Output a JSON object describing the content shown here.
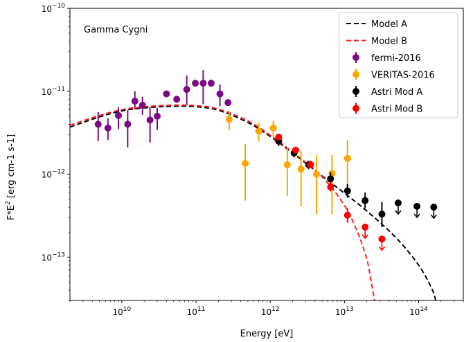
{
  "chart_data": {
    "type": "scatter",
    "annotation": "Gamma Cygni",
    "xlabel": "Energy [eV]",
    "ylabel_base": "F*E",
    "ylabel_sup": "2",
    "ylabel_rest": "  [erg cm-1 s-1]",
    "xscale": "log",
    "yscale": "log",
    "xlim": [
      2000000000.0,
      400000000000000.0
    ],
    "ylim": [
      3e-14,
      1e-10
    ],
    "x_ticks": [
      {
        "value": 10000000000.0,
        "mant": "10",
        "exp": "10"
      },
      {
        "value": 100000000000.0,
        "mant": "10",
        "exp": "11"
      },
      {
        "value": 1000000000000.0,
        "mant": "10",
        "exp": "12"
      },
      {
        "value": 10000000000000.0,
        "mant": "10",
        "exp": "13"
      },
      {
        "value": 100000000000000.0,
        "mant": "10",
        "exp": "14"
      }
    ],
    "y_ticks": [
      {
        "value": 1e-13,
        "mant": "10",
        "exp": "−13"
      },
      {
        "value": 1e-12,
        "mant": "10",
        "exp": "−12"
      },
      {
        "value": 1e-11,
        "mant": "10",
        "exp": "−11"
      },
      {
        "value": 1e-10,
        "mant": "10",
        "exp": "−10"
      }
    ],
    "legend_position": "top-right",
    "models": [
      {
        "name": "Model A",
        "color": "#000000",
        "dashed": true,
        "x": [
          2000000000.0,
          5000000000.0,
          10000000000.0,
          20000000000.0,
          50000000000.0,
          100000000000.0,
          200000000000.0,
          500000000000.0,
          1000000000000.0,
          2000000000000.0,
          5000000000000.0,
          10000000000000.0,
          20000000000000.0,
          50000000000000.0,
          100000000000000.0,
          150000000000000.0,
          170000000000000.0
        ],
        "y": [
          3.7e-12,
          4.9e-12,
          5.8e-12,
          6.3e-12,
          6.6e-12,
          6.5e-12,
          5.9e-12,
          4.2e-12,
          2.85e-12,
          1.8e-12,
          9.5e-13,
          5.9e-13,
          3.6e-13,
          1.7e-13,
          8e-14,
          4.2e-14,
          3e-14
        ]
      },
      {
        "name": "Model B",
        "color": "#ff2020",
        "dashed": true,
        "x": [
          2000000000.0,
          5000000000.0,
          10000000000.0,
          20000000000.0,
          50000000000.0,
          100000000000.0,
          200000000000.0,
          500000000000.0,
          1000000000000.0,
          2000000000000.0,
          5000000000000.0,
          10000000000000.0,
          15000000000000.0,
          20000000000000.0,
          23000000000000.0,
          25500000000000.0
        ],
        "y": [
          3.9e-12,
          5.1e-12,
          6e-12,
          6.5e-12,
          6.8e-12,
          6.7e-12,
          6.1e-12,
          4.4e-12,
          2.95e-12,
          1.85e-12,
          9.3e-13,
          4.2e-13,
          2e-13,
          9.5e-14,
          5e-14,
          3e-14
        ]
      }
    ],
    "series": [
      {
        "name": "fermi-2016",
        "color": "#7b0b84",
        "points": [
          {
            "x": 4800000000.0,
            "y": 4e-12,
            "lo": 2.5e-12,
            "hi": 5.6e-12
          },
          {
            "x": 6500000000.0,
            "y": 3.6e-12,
            "lo": 2.6e-12,
            "hi": 4.7e-12
          },
          {
            "x": 9000000000.0,
            "y": 5.1e-12,
            "lo": 3.5e-12,
            "hi": 6.4e-12
          },
          {
            "x": 12000000000.0,
            "y": 4e-12,
            "lo": 2.1e-12,
            "hi": 5.9e-12
          },
          {
            "x": 15000000000.0,
            "y": 7.6e-12,
            "lo": 6e-12,
            "hi": 1e-11
          },
          {
            "x": 19000000000.0,
            "y": 6.8e-12,
            "lo": 5.2e-12,
            "hi": 8.6e-12
          },
          {
            "x": 24000000000.0,
            "y": 4.5e-12,
            "lo": 2.4e-12,
            "hi": 6.4e-12
          },
          {
            "x": 30000000000.0,
            "y": 5e-12,
            "lo": 3.4e-12,
            "hi": 6.3e-12
          },
          {
            "x": 40000000000.0,
            "y": 9.3e-12,
            "lo": null,
            "hi": null
          },
          {
            "x": 55000000000.0,
            "y": 8e-12,
            "lo": null,
            "hi": null
          },
          {
            "x": 75000000000.0,
            "y": 1.05e-11,
            "lo": 6.8e-12,
            "hi": 1.55e-11
          },
          {
            "x": 98000000000.0,
            "y": 1.25e-11,
            "lo": null,
            "hi": null
          },
          {
            "x": 125000000000.0,
            "y": 1.25e-11,
            "lo": 7e-12,
            "hi": 1.8e-11
          },
          {
            "x": 160000000000.0,
            "y": 1.25e-11,
            "lo": null,
            "hi": null
          },
          {
            "x": 210000000000.0,
            "y": 9.3e-12,
            "lo": 6.6e-12,
            "hi": 1.2e-11
          },
          {
            "x": 270000000000.0,
            "y": 7.3e-12,
            "lo": null,
            "hi": null
          }
        ]
      },
      {
        "name": "VERITAS-2016",
        "color": "#ffa500",
        "points": [
          {
            "x": 280000000000.0,
            "y": 4.6e-12,
            "lo": 3.4e-12,
            "hi": 5.8e-12
          },
          {
            "x": 460000000000.0,
            "y": 1.35e-12,
            "lo": 4.8e-13,
            "hi": 2.3e-12
          },
          {
            "x": 700000000000.0,
            "y": 3.3e-12,
            "lo": 2.5e-12,
            "hi": 4.2e-12
          },
          {
            "x": 1100000000000.0,
            "y": 3.6e-12,
            "lo": 2.8e-12,
            "hi": 4.4e-12
          },
          {
            "x": 1700000000000.0,
            "y": 1.3e-12,
            "lo": 5.5e-13,
            "hi": 2.1e-12
          },
          {
            "x": 2600000000000.0,
            "y": 1.15e-12,
            "lo": 4.1e-13,
            "hi": 1.9e-12
          },
          {
            "x": 4200000000000.0,
            "y": 1e-12,
            "lo": 3.3e-13,
            "hi": 1.7e-12
          },
          {
            "x": 6800000000000.0,
            "y": 1.02e-12,
            "lo": 3.3e-13,
            "hi": 1.7e-12
          },
          {
            "x": 11000000000000.0,
            "y": 1.55e-12,
            "lo": 5.8e-13,
            "hi": 2.6e-12
          }
        ]
      },
      {
        "name": "Astri Mod A",
        "color": "#000000",
        "points": [
          {
            "x": 1300000000000.0,
            "y": 2.5e-12,
            "lo": 2.2e-12,
            "hi": 2.8e-12
          },
          {
            "x": 2100000000000.0,
            "y": 1.8e-12,
            "lo": 1.6e-12,
            "hi": 2e-12
          },
          {
            "x": 3300000000000.0,
            "y": 1.3e-12,
            "lo": 1.15e-12,
            "hi": 1.45e-12
          },
          {
            "x": 6500000000000.0,
            "y": 8.8e-13,
            "lo": 7.5e-13,
            "hi": 1.05e-12
          },
          {
            "x": 11000000000000.0,
            "y": 6.3e-13,
            "lo": 5.2e-13,
            "hi": 7.6e-13
          },
          {
            "x": 19000000000000.0,
            "y": 4.8e-13,
            "lo": 3.9e-13,
            "hi": 6e-13
          },
          {
            "x": 32000000000000.0,
            "y": 3.3e-13,
            "lo": 2.3e-13,
            "hi": 4.6e-13
          },
          {
            "x": 53000000000000.0,
            "y": 4.5e-13,
            "upper_limit": true
          },
          {
            "x": 95000000000000.0,
            "y": 4.1e-13,
            "upper_limit": true
          },
          {
            "x": 160000000000000.0,
            "y": 4e-13,
            "upper_limit": true
          }
        ]
      },
      {
        "name": "Astri Mod B",
        "color": "#ff0000",
        "points": [
          {
            "x": 1300000000000.0,
            "y": 2.8e-12,
            "lo": 2.6e-12,
            "hi": 3.05e-12
          },
          {
            "x": 2200000000000.0,
            "y": 1.95e-12,
            "lo": 1.8e-12,
            "hi": 2.1e-12
          },
          {
            "x": 3500000000000.0,
            "y": 1.3e-12,
            "lo": 1.2e-12,
            "hi": 1.45e-12
          },
          {
            "x": 6500000000000.0,
            "y": 7e-13,
            "lo": 6.2e-13,
            "hi": 8e-13
          },
          {
            "x": 11000000000000.0,
            "y": 3.2e-13,
            "lo": 2.6e-13,
            "hi": 3.9e-13
          },
          {
            "x": 19000000000000.0,
            "y": 2.3e-13,
            "upper_limit": true
          },
          {
            "x": 32000000000000.0,
            "y": 1.65e-13,
            "upper_limit": true
          }
        ]
      }
    ]
  }
}
